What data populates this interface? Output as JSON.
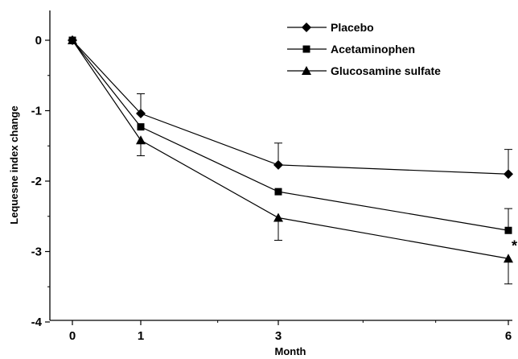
{
  "chart_data": {
    "type": "line",
    "xlabel": "Month",
    "ylabel": "Lequesne index change",
    "xlim": [
      0,
      6
    ],
    "ylim": [
      -4,
      0
    ],
    "x_ticks": [
      0,
      1,
      3,
      6
    ],
    "y_ticks": [
      0,
      -1,
      -2,
      -3,
      -4
    ],
    "x": [
      0,
      1,
      3,
      6
    ],
    "grid": false,
    "legend_position": "top-right",
    "series": [
      {
        "name": "Placebo",
        "marker": "diamond",
        "values": [
          0,
          -1.04,
          -1.77,
          -1.9
        ],
        "err_upper": [
          0,
          0.28,
          0.31,
          0.35
        ]
      },
      {
        "name": "Acetaminophen",
        "marker": "square",
        "values": [
          0,
          -1.23,
          -2.15,
          -2.7
        ],
        "err_upper": [
          0,
          0,
          0,
          0.31
        ]
      },
      {
        "name": "Glucosamine sulfate",
        "marker": "triangle",
        "values": [
          0,
          -1.42,
          -2.52,
          -3.1
        ],
        "err_lower": [
          0,
          0.22,
          0.32,
          0.36
        ]
      }
    ],
    "annotations": [
      {
        "text": "*",
        "x": 6,
        "y": -3.1
      }
    ]
  }
}
